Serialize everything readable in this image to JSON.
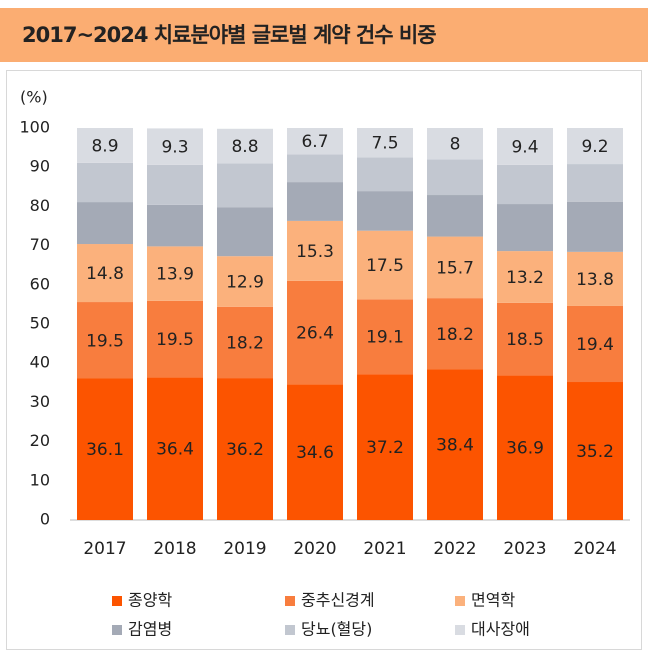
{
  "chart_data": {
    "type": "stacked_bar",
    "title": "2017~2024 치료분야별 글로벌 계약 건수 비중",
    "y_label": "(%)",
    "categories": [
      "2017",
      "2018",
      "2019",
      "2020",
      "2021",
      "2022",
      "2023",
      "2024"
    ],
    "series": [
      {
        "name": "종양학",
        "color": "#fc5400",
        "labels": true,
        "values": [
          36.1,
          36.4,
          36.2,
          34.6,
          37.2,
          38.4,
          36.9,
          35.2
        ]
      },
      {
        "name": "중추신경계",
        "color": "#f87d3e",
        "labels": true,
        "values": [
          19.5,
          19.5,
          18.2,
          26.4,
          19.1,
          18.2,
          18.5,
          19.4
        ]
      },
      {
        "name": "면역학",
        "color": "#fbb17c",
        "labels": true,
        "values": [
          14.8,
          13.9,
          12.9,
          15.3,
          17.5,
          15.7,
          13.2,
          13.8
        ]
      },
      {
        "name": "감염병",
        "color": "#a4aab6",
        "labels": false,
        "values": [
          10.7,
          10.6,
          12.5,
          9.9,
          10.1,
          10.6,
          12.0,
          12.8
        ]
      },
      {
        "name": "당뇨(혈당)",
        "color": "#c2c7d0",
        "labels": false,
        "values": [
          10.0,
          10.2,
          11.2,
          7.1,
          8.6,
          9.1,
          10.0,
          9.6
        ]
      },
      {
        "name": "대사장애",
        "color": "#d9dce2",
        "labels": true,
        "values": [
          8.9,
          9.3,
          8.8,
          6.7,
          7.5,
          8.0,
          9.4,
          9.2
        ]
      }
    ],
    "ylim": [
      0,
      100
    ],
    "yticks": [
      0,
      10,
      20,
      30,
      40,
      50,
      60,
      70,
      80,
      90,
      100
    ]
  }
}
